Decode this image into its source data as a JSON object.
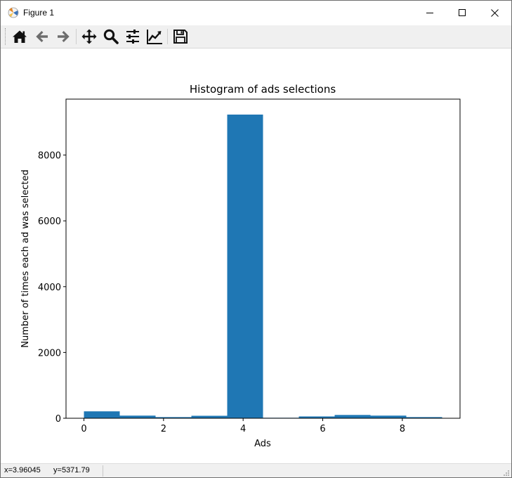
{
  "window": {
    "title": "Figure 1"
  },
  "toolbar": {
    "buttons": [
      {
        "icon": "home-icon"
      },
      {
        "icon": "back-arrow-icon"
      },
      {
        "icon": "forward-arrow-icon"
      },
      {
        "icon": "pan-icon"
      },
      {
        "icon": "zoom-icon"
      },
      {
        "icon": "subplots-icon"
      },
      {
        "icon": "edit-axis-icon"
      },
      {
        "icon": "save-icon"
      }
    ]
  },
  "status": {
    "coords": "x=3.96045      y=5371.79"
  },
  "colors": {
    "bar": "#1f77b4",
    "toolbar_bg": "#f0f0f0"
  },
  "chart_data": {
    "type": "bar",
    "title": "Histogram of ads selections",
    "xlabel": "Ads",
    "ylabel": "Number of times each ad was selected",
    "bins": [
      {
        "x0": 0.0,
        "x1": 0.9,
        "value": 210
      },
      {
        "x0": 0.9,
        "x1": 1.8,
        "value": 80
      },
      {
        "x0": 1.8,
        "x1": 2.7,
        "value": 35
      },
      {
        "x0": 2.7,
        "x1": 3.6,
        "value": 75
      },
      {
        "x0": 3.6,
        "x1": 4.5,
        "value": 9230
      },
      {
        "x0": 4.5,
        "x1": 5.4,
        "value": 15
      },
      {
        "x0": 5.4,
        "x1": 6.3,
        "value": 55
      },
      {
        "x0": 6.3,
        "x1": 7.2,
        "value": 100
      },
      {
        "x0": 7.2,
        "x1": 8.1,
        "value": 80
      },
      {
        "x0": 8.1,
        "x1": 9.0,
        "value": 35
      }
    ],
    "xlim": [
      -0.45,
      9.45
    ],
    "ylim": [
      0,
      9700
    ],
    "xticks": [
      0,
      2,
      4,
      6,
      8
    ],
    "yticks": [
      0,
      2000,
      4000,
      6000,
      8000
    ],
    "grid": false
  }
}
